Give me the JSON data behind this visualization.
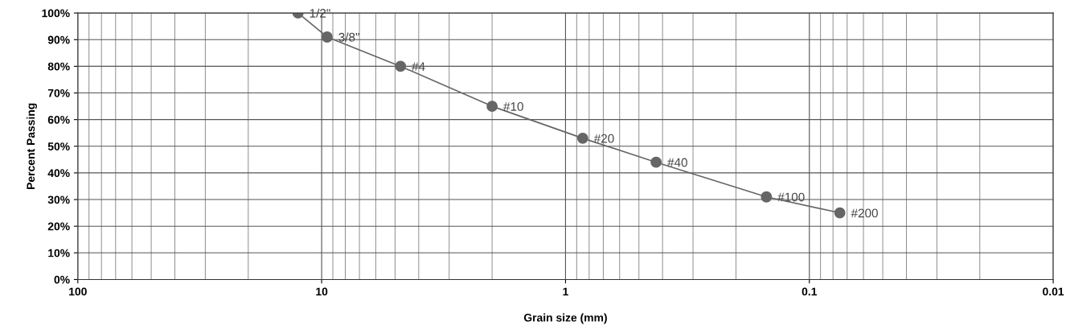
{
  "chart_data": {
    "type": "line",
    "xlabel": "Grain size (mm)",
    "ylabel": "Percent Passing",
    "x": [
      12.5,
      9.5,
      4.75,
      2.0,
      0.85,
      0.425,
      0.15,
      0.075
    ],
    "series": [
      {
        "color": "#666666",
        "values": [
          100,
          91,
          80,
          65,
          53,
          44,
          31,
          25
        ]
      }
    ],
    "log": "x",
    "xlim": [
      100,
      0.01
    ],
    "xticks": [
      100,
      10,
      1,
      0.1,
      0.01
    ],
    "ylim": [
      0,
      100
    ],
    "yticks": [
      {
        "value": 0,
        "label": "0%"
      },
      {
        "value": 10,
        "label": "10%"
      },
      {
        "value": 20,
        "label": "20%"
      },
      {
        "value": 30,
        "label": "30%"
      },
      {
        "value": 40,
        "label": "40%"
      },
      {
        "value": 50,
        "label": "50%"
      },
      {
        "value": 60,
        "label": "60%"
      },
      {
        "value": 70,
        "label": "70%"
      },
      {
        "value": 80,
        "label": "80%"
      },
      {
        "value": 90,
        "label": "90%"
      },
      {
        "value": 100,
        "label": "100%"
      }
    ],
    "grid": true,
    "marker": "circle",
    "line_style": "solid",
    "legend": false,
    "annotations": [
      {
        "text": "1/2\"",
        "x": 12.5,
        "y": 100
      },
      {
        "text": "3/8\"",
        "x": 9.5,
        "y": 91
      },
      {
        "text": "#4",
        "x": 4.75,
        "y": 80
      },
      {
        "text": "#10",
        "x": 2.0,
        "y": 65
      },
      {
        "text": "#20",
        "x": 0.85,
        "y": 53
      },
      {
        "text": "#40",
        "x": 0.425,
        "y": 44
      },
      {
        "text": "#100",
        "x": 0.15,
        "y": 31
      },
      {
        "text": "#200",
        "x": 0.075,
        "y": 25
      }
    ]
  }
}
